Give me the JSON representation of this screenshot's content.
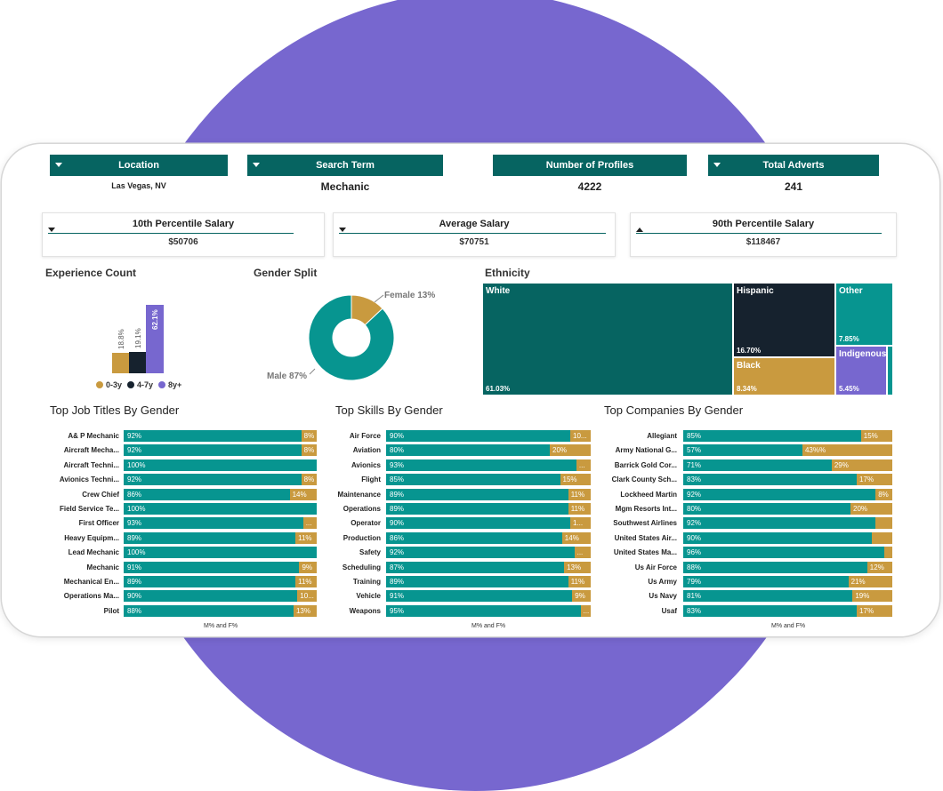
{
  "filters": [
    {
      "label": "Location",
      "value": "Las Vegas, NV"
    },
    {
      "label": "Search Term",
      "value": "Mechanic"
    },
    {
      "label": "Number of Profiles",
      "value": "4222"
    },
    {
      "label": "Total Adverts",
      "value": "241"
    }
  ],
  "salaries": [
    {
      "label": "10th Percentile Salary",
      "value": "$50706"
    },
    {
      "label": "Average Salary",
      "value": "$70751"
    },
    {
      "label": "90th Percentile Salary",
      "value": "$118467"
    }
  ],
  "experience": {
    "title": "Experience Count",
    "bars": [
      {
        "label": "0-3y",
        "pct": 18.8,
        "pct_label": "18.8%",
        "color": "#c99a3f"
      },
      {
        "label": "4-7y",
        "pct": 19.1,
        "pct_label": "19.1%",
        "color": "#16222e"
      },
      {
        "label": "8y+",
        "pct": 62.1,
        "pct_label": "62.1%",
        "color": "#7767cf"
      }
    ]
  },
  "gender": {
    "title": "Gender Split",
    "slices": [
      {
        "label": "Female 13%",
        "value": 13,
        "color": "#c99a3f"
      },
      {
        "label": "Male 87%",
        "value": 87,
        "color": "#079590"
      }
    ]
  },
  "ethnicity": {
    "title": "Ethnicity",
    "cells": [
      {
        "name": "White",
        "pct": "61.03%",
        "color": "#066461"
      },
      {
        "name": "Hispanic",
        "pct": "16.70%",
        "color": "#16222e"
      },
      {
        "name": "Other",
        "pct": "7.85%",
        "color": "#079590"
      },
      {
        "name": "Black",
        "pct": "8.34%",
        "color": "#c99a3f"
      },
      {
        "name": "Indigenous",
        "pct": "5.45%",
        "color": "#7767cf"
      }
    ]
  },
  "job_titles": {
    "title": "Top Job Titles By Gender",
    "axis_label": "M% and F%",
    "rows": [
      {
        "label": "A& P Mechanic",
        "m": 92,
        "m_label": "92%",
        "f_label": "8%"
      },
      {
        "label": "Aircraft Mecha...",
        "m": 92,
        "m_label": "92%",
        "f_label": "8%"
      },
      {
        "label": "Aircraft Techni...",
        "m": 100,
        "m_label": "100%",
        "f_label": ""
      },
      {
        "label": "Avionics Techni...",
        "m": 92,
        "m_label": "92%",
        "f_label": "8%"
      },
      {
        "label": "Crew Chief",
        "m": 86,
        "m_label": "86%",
        "f_label": "14%"
      },
      {
        "label": "Field Service Te...",
        "m": 100,
        "m_label": "100%",
        "f_label": ""
      },
      {
        "label": "First Officer",
        "m": 93,
        "m_label": "93%",
        "f_label": "..."
      },
      {
        "label": "Heavy Equipm...",
        "m": 89,
        "m_label": "89%",
        "f_label": "11%"
      },
      {
        "label": "Lead Mechanic",
        "m": 100,
        "m_label": "100%",
        "f_label": ""
      },
      {
        "label": "Mechanic",
        "m": 91,
        "m_label": "91%",
        "f_label": "9%"
      },
      {
        "label": "Mechanical En...",
        "m": 89,
        "m_label": "89%",
        "f_label": "11%"
      },
      {
        "label": "Operations Ma...",
        "m": 90,
        "m_label": "90%",
        "f_label": "10..."
      },
      {
        "label": "Pilot",
        "m": 88,
        "m_label": "88%",
        "f_label": "13%"
      }
    ]
  },
  "skills": {
    "title": "Top Skills By Gender",
    "axis_label": "M% and F%",
    "rows": [
      {
        "label": "Air Force",
        "m": 90,
        "m_label": "90%",
        "f_label": "10..."
      },
      {
        "label": "Aviation",
        "m": 80,
        "m_label": "80%",
        "f_label": "20%"
      },
      {
        "label": "Avionics",
        "m": 93,
        "m_label": "93%",
        "f_label": "..."
      },
      {
        "label": "Flight",
        "m": 85,
        "m_label": "85%",
        "f_label": "15%"
      },
      {
        "label": "Maintenance",
        "m": 89,
        "m_label": "89%",
        "f_label": "11%"
      },
      {
        "label": "Operations",
        "m": 89,
        "m_label": "89%",
        "f_label": "11%"
      },
      {
        "label": "Operator",
        "m": 90,
        "m_label": "90%",
        "f_label": "1..."
      },
      {
        "label": "Production",
        "m": 86,
        "m_label": "86%",
        "f_label": "14%"
      },
      {
        "label": "Safety",
        "m": 92,
        "m_label": "92%",
        "f_label": "..."
      },
      {
        "label": "Scheduling",
        "m": 87,
        "m_label": "87%",
        "f_label": "13%"
      },
      {
        "label": "Training",
        "m": 89,
        "m_label": "89%",
        "f_label": "11%"
      },
      {
        "label": "Vehicle",
        "m": 91,
        "m_label": "91%",
        "f_label": "9%"
      },
      {
        "label": "Weapons",
        "m": 95,
        "m_label": "95%",
        "f_label": "..."
      }
    ]
  },
  "companies": {
    "title": "Top Companies By Gender",
    "axis_label": "M% and F%",
    "rows": [
      {
        "label": "Allegiant",
        "m": 85,
        "m_label": "85%",
        "f_label": "15%"
      },
      {
        "label": "Army National G...",
        "m": 57,
        "m_label": "57%",
        "f_label": "43%%"
      },
      {
        "label": "Barrick Gold Cor...",
        "m": 71,
        "m_label": "71%",
        "f_label": "29%"
      },
      {
        "label": "Clark County Sch...",
        "m": 83,
        "m_label": "83%",
        "f_label": "17%"
      },
      {
        "label": "Lockheed Martin",
        "m": 92,
        "m_label": "92%",
        "f_label": "8%"
      },
      {
        "label": "Mgm Resorts Int...",
        "m": 80,
        "m_label": "80%",
        "f_label": "20%"
      },
      {
        "label": "Southwest Airlines",
        "m": 92,
        "m_label": "92%",
        "f_label": ""
      },
      {
        "label": "United States Air...",
        "m": 90,
        "m_label": "90%",
        "f_label": ""
      },
      {
        "label": "United States Ma...",
        "m": 96,
        "m_label": "96%",
        "f_label": ""
      },
      {
        "label": "Us Air Force",
        "m": 88,
        "m_label": "88%",
        "f_label": "12%"
      },
      {
        "label": "Us Army",
        "m": 79,
        "m_label": "79%",
        "f_label": "21%"
      },
      {
        "label": "Us Navy",
        "m": 81,
        "m_label": "81%",
        "f_label": "19%"
      },
      {
        "label": "Usaf",
        "m": 83,
        "m_label": "83%",
        "f_label": "17%"
      }
    ]
  },
  "colors": {
    "male": "#079590",
    "female": "#c99a3f",
    "header": "#066461",
    "accent": "#7767cf"
  }
}
